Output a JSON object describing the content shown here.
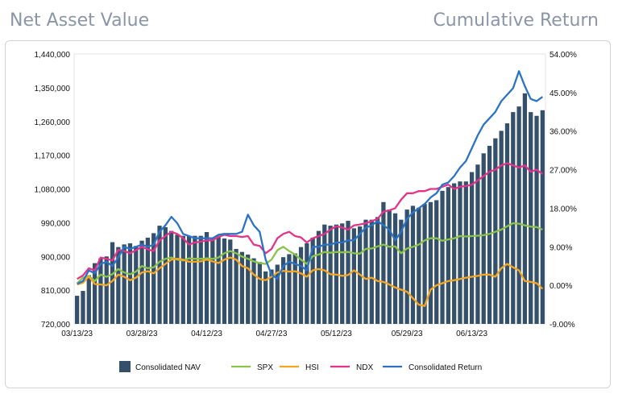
{
  "header": {
    "left_title": "Net Asset Value",
    "right_title": "Cumulative Return"
  },
  "chart_data": {
    "type": "bar",
    "title": "",
    "xlabel": "",
    "ylabel": "",
    "ylim": [
      720000,
      1440000
    ],
    "y2lim": [
      -0.09,
      0.54
    ],
    "y_ticks": [
      "720,000",
      "810,000",
      "900,000",
      "990,000",
      "1,080,000",
      "1,170,000",
      "1,260,000",
      "1,350,000",
      "1,440,000"
    ],
    "y2_ticks": [
      "-9.00%",
      "0.00%",
      "9.00%",
      "18.00%",
      "27.00%",
      "36.00%",
      "45.00%",
      "54.00%"
    ],
    "x_tick_labels": [
      "03/13/23",
      "03/28/23",
      "04/12/23",
      "04/27/23",
      "05/12/23",
      "05/29/23",
      "06/13/23"
    ],
    "x_tick_indices": [
      0,
      11,
      22,
      33,
      44,
      56,
      67
    ],
    "grid": false,
    "legend_position": "bottom",
    "categories_count": 80,
    "bar_series": {
      "name": "Consolidated NAV",
      "color": "#34506b",
      "values": [
        795000,
        808000,
        850000,
        882000,
        895000,
        900000,
        938000,
        925000,
        932000,
        935000,
        928000,
        942000,
        950000,
        962000,
        982000,
        978000,
        968000,
        958000,
        955000,
        955000,
        955000,
        955000,
        965000,
        950000,
        955000,
        948000,
        945000,
        920000,
        912000,
        905000,
        895000,
        885000,
        860000,
        865000,
        878000,
        898000,
        906000,
        908000,
        925000,
        935000,
        950000,
        968000,
        985000,
        982000,
        985000,
        988000,
        995000,
        975000,
        980000,
        998000,
        998000,
        1005000,
        1045000,
        1025000,
        1015000,
        998000,
        1025000,
        1035000,
        1030000,
        1040000,
        1045000,
        1050000,
        1075000,
        1085000,
        1095000,
        1100000,
        1100000,
        1125000,
        1145000,
        1175000,
        1195000,
        1215000,
        1235000,
        1255000,
        1285000,
        1300000,
        1335000,
        1285000,
        1275000,
        1290000
      ]
    },
    "line_series": [
      {
        "name": "SPX",
        "color": "#8bc34a",
        "values": [
          0.5,
          1.8,
          2.2,
          1.0,
          2.5,
          2.0,
          2.6,
          3.8,
          3.0,
          2.6,
          3.2,
          4.5,
          4.0,
          4.2,
          5.5,
          6.2,
          6.5,
          6.0,
          5.8,
          6.3,
          6.2,
          6.2,
          6.3,
          6.2,
          6.5,
          7.5,
          8.0,
          7.5,
          6.7,
          6.2,
          5.6,
          5.2,
          5.0,
          6.0,
          8.2,
          9.0,
          8.0,
          7.2,
          6.0,
          5.0,
          6.8,
          7.2,
          7.8,
          7.6,
          7.8,
          7.7,
          7.8,
          7.5,
          7.4,
          8.5,
          8.6,
          9.1,
          9.5,
          9.0,
          9.1,
          7.5,
          8.6,
          9.0,
          9.5,
          10.5,
          11.0,
          11.0,
          10.4,
          10.7,
          11.0,
          11.5,
          11.4,
          11.5,
          11.6,
          11.7,
          12.0,
          12.5,
          13.0,
          13.8,
          14.5,
          14.4,
          14.0,
          13.7,
          13.6,
          13.0
        ]
      },
      {
        "name": "HSI",
        "color": "#f5a623",
        "values": [
          0.2,
          0.6,
          2.1,
          0.3,
          0.2,
          0.0,
          1.0,
          2.5,
          2.0,
          1.2,
          1.8,
          3.0,
          3.3,
          2.8,
          4.0,
          5.0,
          6.0,
          6.2,
          6.0,
          5.5,
          5.5,
          5.6,
          6.0,
          5.6,
          5.2,
          6.0,
          6.5,
          6.0,
          4.5,
          4.0,
          2.5,
          1.5,
          1.2,
          2.0,
          3.0,
          3.4,
          3.2,
          3.3,
          2.8,
          2.0,
          3.5,
          3.8,
          3.5,
          2.6,
          2.5,
          2.2,
          2.4,
          3.5,
          2.5,
          1.5,
          1.8,
          1.0,
          0.8,
          0.2,
          -0.5,
          -1.0,
          -1.5,
          -3.0,
          -4.5,
          -4.8,
          -1.0,
          0.0,
          0.5,
          1.0,
          1.2,
          1.5,
          1.8,
          2.0,
          2.2,
          2.5,
          2.5,
          2.0,
          4.0,
          5.0,
          4.2,
          3.5,
          1.0,
          0.8,
          0.5,
          -0.8
        ]
      },
      {
        "name": "NDX",
        "color": "#e6338a",
        "values": [
          1.5,
          2.3,
          4.0,
          3.5,
          6.5,
          6.2,
          5.8,
          8.3,
          8.0,
          7.5,
          8.2,
          9.0,
          8.4,
          8.0,
          10.5,
          11.5,
          12.5,
          12.0,
          11.0,
          9.5,
          10.0,
          10.2,
          10.5,
          10.5,
          11.3,
          11.8,
          11.5,
          11.5,
          11.3,
          11.5,
          9.5,
          9.2,
          7.5,
          8.5,
          11.0,
          12.0,
          12.5,
          11.5,
          11.2,
          10.0,
          11.0,
          11.5,
          12.0,
          13.0,
          13.8,
          13.5,
          13.0,
          14.0,
          14.2,
          14.5,
          15.0,
          15.5,
          17.2,
          17.5,
          18.0,
          20.0,
          21.5,
          21.5,
          22.0,
          22.0,
          22.5,
          22.5,
          23.0,
          23.5,
          22.5,
          23.0,
          23.2,
          23.5,
          24.5,
          25.5,
          26.5,
          27.0,
          28.0,
          28.5,
          28.0,
          27.5,
          28.0,
          26.5,
          27.0,
          26.0
        ]
      },
      {
        "name": "Consolidated Return",
        "color": "#2a73c6",
        "values": [
          0.3,
          1.0,
          3.5,
          2.8,
          5.0,
          5.5,
          4.5,
          6.5,
          9.0,
          8.5,
          9.0,
          9.5,
          9.0,
          9.5,
          12.5,
          14.0,
          16.0,
          14.5,
          12.0,
          11.5,
          11.0,
          11.0,
          11.0,
          11.0,
          11.8,
          12.0,
          12.0,
          12.0,
          12.5,
          16.5,
          14.0,
          12.5,
          6.0,
          2.5,
          1.5,
          4.5,
          5.5,
          5.0,
          4.5,
          3.5,
          9.0,
          9.0,
          9.5,
          9.5,
          10.0,
          10.0,
          10.5,
          10.5,
          12.0,
          13.5,
          14.0,
          15.0,
          14.0,
          13.0,
          10.5,
          12.5,
          15.5,
          17.0,
          18.0,
          19.0,
          20.5,
          21.5,
          23.5,
          24.0,
          25.5,
          27.5,
          29.0,
          32.0,
          35.0,
          37.5,
          39.0,
          40.5,
          43.0,
          44.5,
          46.0,
          50.0,
          46.5,
          43.5,
          43.0,
          44.0
        ]
      }
    ],
    "legend": [
      "Consolidated NAV",
      "SPX",
      "HSI",
      "NDX",
      "Consolidated Return"
    ]
  }
}
